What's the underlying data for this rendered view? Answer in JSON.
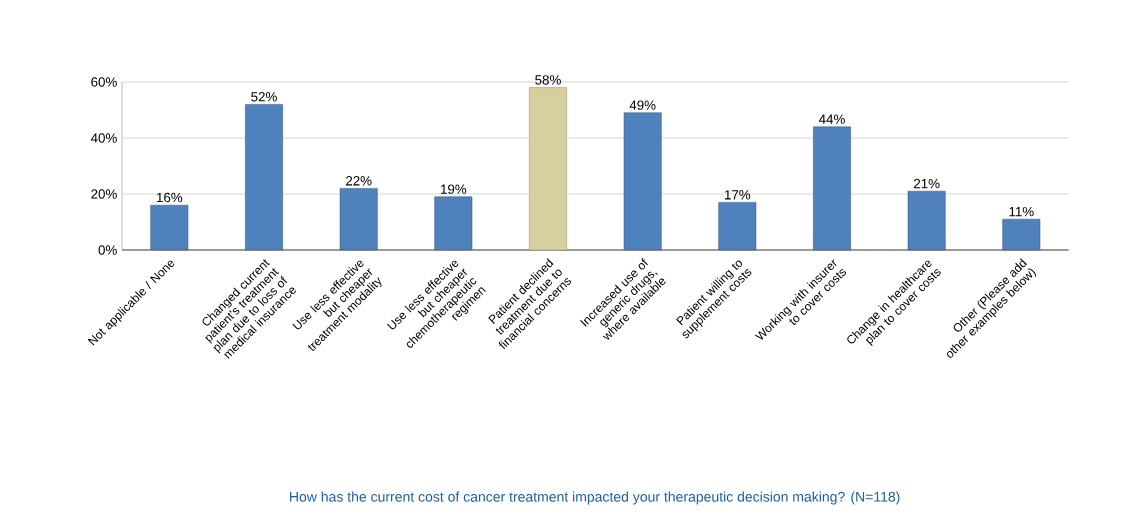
{
  "chart_data": {
    "type": "bar",
    "title": "How has the current cost of cancer treatment impacted your therapeutic decision making? (N=118)",
    "categories": [
      "Not applicable / None",
      "Changed current patient's treatment plan due to loss of medical insurance",
      "Use less effective but cheaper treatment modality",
      "Use less effective but cheaper chemotherapeutic regimen",
      "Patient declined treatment due to financial concerns",
      "Increased use of generic drugs, where available",
      "Patient willing to supplement costs",
      "Working with insurer to cover costs",
      "Change in healthcare plan to cover costs",
      "Other (Please add other examples below)"
    ],
    "values": [
      16,
      52,
      22,
      19,
      58,
      49,
      17,
      44,
      21,
      11
    ],
    "value_labels": [
      "16%",
      "52%",
      "22%",
      "19%",
      "58%",
      "49%",
      "17%",
      "44%",
      "21%",
      "11%"
    ],
    "colors": [
      "#4f81bd",
      "#4f81bd",
      "#4f81bd",
      "#4f81bd",
      "#d6cf9e",
      "#4f81bd",
      "#4f81bd",
      "#4f81bd",
      "#4f81bd",
      "#4f81bd"
    ],
    "ylim": [
      0,
      60
    ],
    "yticks": [
      {
        "value": 0,
        "label": "0%"
      },
      {
        "value": 20,
        "label": "20%"
      },
      {
        "value": 40,
        "label": "40%"
      },
      {
        "value": 60,
        "label": "60%"
      }
    ],
    "grid": "y"
  }
}
